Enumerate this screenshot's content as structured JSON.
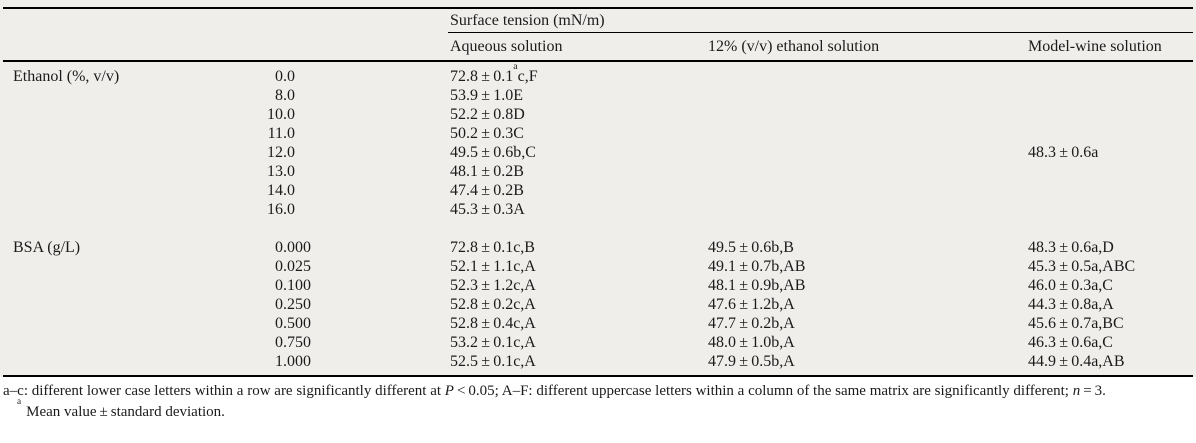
{
  "colors": {
    "table_bg": "#efeeeb",
    "page_bg": "#ffffff",
    "text": "#1b1b1b",
    "rule": "#000000"
  },
  "table": {
    "group_header": "Surface tension (mN/m)",
    "columns": [
      "Aqueous solution",
      "12% (v/v) ethanol solution",
      "Model-wine solution"
    ],
    "sections": [
      {
        "label": "Ethanol (%, v/v)",
        "rows": [
          {
            "conc": "0.0",
            "aqueous": [
              {
                "t": "72.8 ± 0.1"
              },
              {
                "t": "a",
                "sup": true
              },
              {
                "t": "c,F"
              }
            ],
            "ethanol12": "",
            "model_wine": ""
          },
          {
            "conc": "8.0",
            "aqueous": "53.9 ± 1.0E",
            "ethanol12": "",
            "model_wine": ""
          },
          {
            "conc": "10.0",
            "aqueous": "52.2 ± 0.8D",
            "ethanol12": "",
            "model_wine": ""
          },
          {
            "conc": "11.0",
            "aqueous": "50.2 ± 0.3C",
            "ethanol12": "",
            "model_wine": ""
          },
          {
            "conc": "12.0",
            "aqueous": "49.5 ± 0.6b,C",
            "ethanol12": "",
            "model_wine": "48.3 ± 0.6a"
          },
          {
            "conc": "13.0",
            "aqueous": "48.1 ± 0.2B",
            "ethanol12": "",
            "model_wine": ""
          },
          {
            "conc": "14.0",
            "aqueous": "47.4 ± 0.2B",
            "ethanol12": "",
            "model_wine": ""
          },
          {
            "conc": "16.0",
            "aqueous": "45.3 ± 0.3A",
            "ethanol12": "",
            "model_wine": ""
          }
        ]
      },
      {
        "label": "BSA (g/L)",
        "rows": [
          {
            "conc": "0.000",
            "aqueous": "72.8 ± 0.1c,B",
            "ethanol12": "49.5 ± 0.6b,B",
            "model_wine": "48.3 ± 0.6a,D"
          },
          {
            "conc": "0.025",
            "aqueous": "52.1 ± 1.1c,A",
            "ethanol12": "49.1 ± 0.7b,AB",
            "model_wine": "45.3 ± 0.5a,ABC"
          },
          {
            "conc": "0.100",
            "aqueous": "52.3 ± 1.2c,A",
            "ethanol12": "48.1 ± 0.9b,AB",
            "model_wine": "46.0 ± 0.3a,C"
          },
          {
            "conc": "0.250",
            "aqueous": "52.8 ± 0.2c,A",
            "ethanol12": "47.6 ± 1.2b,A",
            "model_wine": "44.3 ± 0.8a,A"
          },
          {
            "conc": "0.500",
            "aqueous": "52.8 ± 0.4c,A",
            "ethanol12": "47.7 ± 0.2b,A",
            "model_wine": "45.6 ± 0.7a,BC"
          },
          {
            "conc": "0.750",
            "aqueous": "53.2 ± 0.1c,A",
            "ethanol12": "48.0 ± 1.0b,A",
            "model_wine": "46.3 ± 0.6a,C"
          },
          {
            "conc": "1.000",
            "aqueous": "52.5 ± 0.1c,A",
            "ethanol12": "47.9 ± 0.5b,A",
            "model_wine": "44.9 ± 0.4a,AB"
          }
        ]
      }
    ]
  },
  "footnotes": {
    "significance_parts": [
      {
        "t": "a–c: different lower case letters within a row are significantly different at "
      },
      {
        "t": "P",
        "i": true
      },
      {
        "t": " < 0.05; A–F: different uppercase letters within a column of the same matrix are significantly different; "
      },
      {
        "t": "n",
        "i": true
      },
      {
        "t": " = 3."
      }
    ],
    "mean_sup": "a",
    "mean_text": "Mean value ± standard deviation."
  }
}
